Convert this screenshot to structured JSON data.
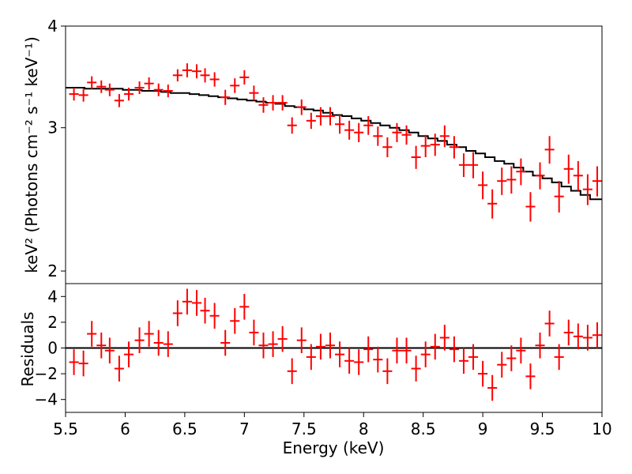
{
  "chart_data": [
    {
      "type": "scatter",
      "panel": "spectrum",
      "ylabel": "keV² (Photons cm⁻² s⁻¹ keV⁻¹)",
      "yscale": "log",
      "ylim": [
        1.93,
        4.0
      ],
      "yticks": [
        {
          "value": 2,
          "label": "2"
        },
        {
          "value": 3,
          "label": "3"
        },
        {
          "value": 4,
          "label": "4"
        }
      ],
      "xlim": [
        5.5,
        10
      ],
      "data_color": "#ff0000",
      "model_color": "#000000",
      "x": [
        5.57,
        5.65,
        5.72,
        5.8,
        5.87,
        5.95,
        6.03,
        6.12,
        6.2,
        6.28,
        6.36,
        6.44,
        6.52,
        6.6,
        6.67,
        6.75,
        6.84,
        6.92,
        7.0,
        7.08,
        7.16,
        7.24,
        7.32,
        7.4,
        7.48,
        7.56,
        7.64,
        7.72,
        7.8,
        7.88,
        7.96,
        8.04,
        8.12,
        8.2,
        8.28,
        8.36,
        8.44,
        8.52,
        8.6,
        8.68,
        8.76,
        8.84,
        8.92,
        9.0,
        9.08,
        9.16,
        9.24,
        9.32,
        9.4,
        9.48,
        9.56,
        9.64,
        9.72,
        9.8,
        9.88,
        9.96
      ],
      "values": [
        3.3,
        3.29,
        3.41,
        3.37,
        3.34,
        3.24,
        3.3,
        3.36,
        3.4,
        3.34,
        3.33,
        3.48,
        3.53,
        3.52,
        3.48,
        3.44,
        3.27,
        3.38,
        3.46,
        3.31,
        3.2,
        3.22,
        3.22,
        3.02,
        3.18,
        3.06,
        3.1,
        3.1,
        3.03,
        2.98,
        2.96,
        3.02,
        2.93,
        2.84,
        2.96,
        2.94,
        2.76,
        2.85,
        2.86,
        2.93,
        2.84,
        2.7,
        2.7,
        2.55,
        2.42,
        2.58,
        2.59,
        2.65,
        2.4,
        2.62,
        2.82,
        2.47,
        2.67,
        2.62,
        2.52,
        2.58
      ],
      "x_err": 0.04,
      "y_err": [
        0.06,
        0.06,
        0.06,
        0.06,
        0.06,
        0.06,
        0.06,
        0.06,
        0.06,
        0.06,
        0.06,
        0.06,
        0.07,
        0.07,
        0.07,
        0.07,
        0.07,
        0.07,
        0.07,
        0.07,
        0.07,
        0.07,
        0.07,
        0.07,
        0.07,
        0.07,
        0.08,
        0.08,
        0.08,
        0.08,
        0.08,
        0.08,
        0.08,
        0.08,
        0.08,
        0.08,
        0.09,
        0.09,
        0.09,
        0.09,
        0.09,
        0.09,
        0.1,
        0.1,
        0.1,
        0.1,
        0.1,
        0.1,
        0.1,
        0.1,
        0.11,
        0.11,
        0.11,
        0.11,
        0.11,
        0.11
      ],
      "model_x": [
        5.5,
        5.58,
        5.66,
        5.74,
        5.82,
        5.9,
        5.98,
        6.06,
        6.14,
        6.22,
        6.3,
        6.38,
        6.46,
        6.54,
        6.62,
        6.7,
        6.78,
        6.86,
        6.94,
        7.02,
        7.1,
        7.18,
        7.26,
        7.34,
        7.42,
        7.5,
        7.58,
        7.66,
        7.74,
        7.82,
        7.9,
        7.98,
        8.06,
        8.14,
        8.22,
        8.3,
        8.38,
        8.46,
        8.54,
        8.62,
        8.7,
        8.78,
        8.86,
        8.94,
        9.02,
        9.1,
        9.18,
        9.26,
        9.34,
        9.42,
        9.5,
        9.58,
        9.66,
        9.74,
        9.82,
        9.9,
        10.0
      ],
      "model_values": [
        3.36,
        3.36,
        3.35,
        3.35,
        3.35,
        3.35,
        3.34,
        3.34,
        3.33,
        3.33,
        3.32,
        3.31,
        3.31,
        3.3,
        3.29,
        3.28,
        3.27,
        3.26,
        3.25,
        3.24,
        3.23,
        3.22,
        3.21,
        3.19,
        3.18,
        3.16,
        3.15,
        3.13,
        3.11,
        3.1,
        3.08,
        3.06,
        3.04,
        3.02,
        3.0,
        2.98,
        2.96,
        2.93,
        2.91,
        2.89,
        2.86,
        2.84,
        2.81,
        2.79,
        2.76,
        2.73,
        2.71,
        2.68,
        2.65,
        2.62,
        2.6,
        2.57,
        2.54,
        2.51,
        2.48,
        2.45
      ]
    },
    {
      "type": "scatter",
      "panel": "residuals",
      "ylabel": "Residuals",
      "xlabel": "Energy (keV)",
      "ylim": [
        -5,
        5
      ],
      "yticks": [
        {
          "value": -4,
          "label": "−4"
        },
        {
          "value": -2,
          "label": "−2"
        },
        {
          "value": 0,
          "label": "0"
        },
        {
          "value": 2,
          "label": "2"
        },
        {
          "value": 4,
          "label": "4"
        }
      ],
      "xlim": [
        5.5,
        10
      ],
      "xticks": [
        {
          "value": 5.5,
          "label": "5.5"
        },
        {
          "value": 6,
          "label": "6"
        },
        {
          "value": 6.5,
          "label": "6.5"
        },
        {
          "value": 7,
          "label": "7"
        },
        {
          "value": 7.5,
          "label": "7.5"
        },
        {
          "value": 8,
          "label": "8"
        },
        {
          "value": 8.5,
          "label": "8.5"
        },
        {
          "value": 9,
          "label": "9"
        },
        {
          "value": 9.5,
          "label": "9.5"
        },
        {
          "value": 10,
          "label": "10"
        }
      ],
      "zero_line": 0,
      "data_color": "#ff0000",
      "x": [
        5.57,
        5.65,
        5.72,
        5.8,
        5.87,
        5.95,
        6.03,
        6.12,
        6.2,
        6.28,
        6.36,
        6.44,
        6.52,
        6.6,
        6.67,
        6.75,
        6.84,
        6.92,
        7.0,
        7.08,
        7.16,
        7.24,
        7.32,
        7.4,
        7.48,
        7.56,
        7.64,
        7.72,
        7.8,
        7.88,
        7.96,
        8.04,
        8.12,
        8.2,
        8.28,
        8.36,
        8.44,
        8.52,
        8.6,
        8.68,
        8.76,
        8.84,
        8.92,
        9.0,
        9.08,
        9.16,
        9.24,
        9.32,
        9.4,
        9.48,
        9.56,
        9.64,
        9.72,
        9.8,
        9.88,
        9.96
      ],
      "values": [
        -1.1,
        -1.2,
        1.1,
        0.2,
        -0.2,
        -1.6,
        -0.5,
        0.6,
        1.1,
        0.4,
        0.3,
        2.7,
        3.6,
        3.5,
        2.9,
        2.5,
        0.4,
        2.1,
        3.2,
        1.2,
        0.2,
        0.3,
        0.7,
        -1.8,
        0.6,
        -0.7,
        0.1,
        0.2,
        -0.5,
        -1.0,
        -1.1,
        -0.1,
        -0.9,
        -1.8,
        -0.2,
        -0.2,
        -1.6,
        -0.5,
        0.1,
        0.8,
        -0.1,
        -1.0,
        -0.7,
        -2.0,
        -3.1,
        -1.3,
        -0.8,
        -0.2,
        -2.2,
        0.2,
        1.9,
        -0.7,
        1.2,
        0.9,
        0.8,
        1.0
      ],
      "x_err": 0.04,
      "y_err": 1.0
    }
  ]
}
